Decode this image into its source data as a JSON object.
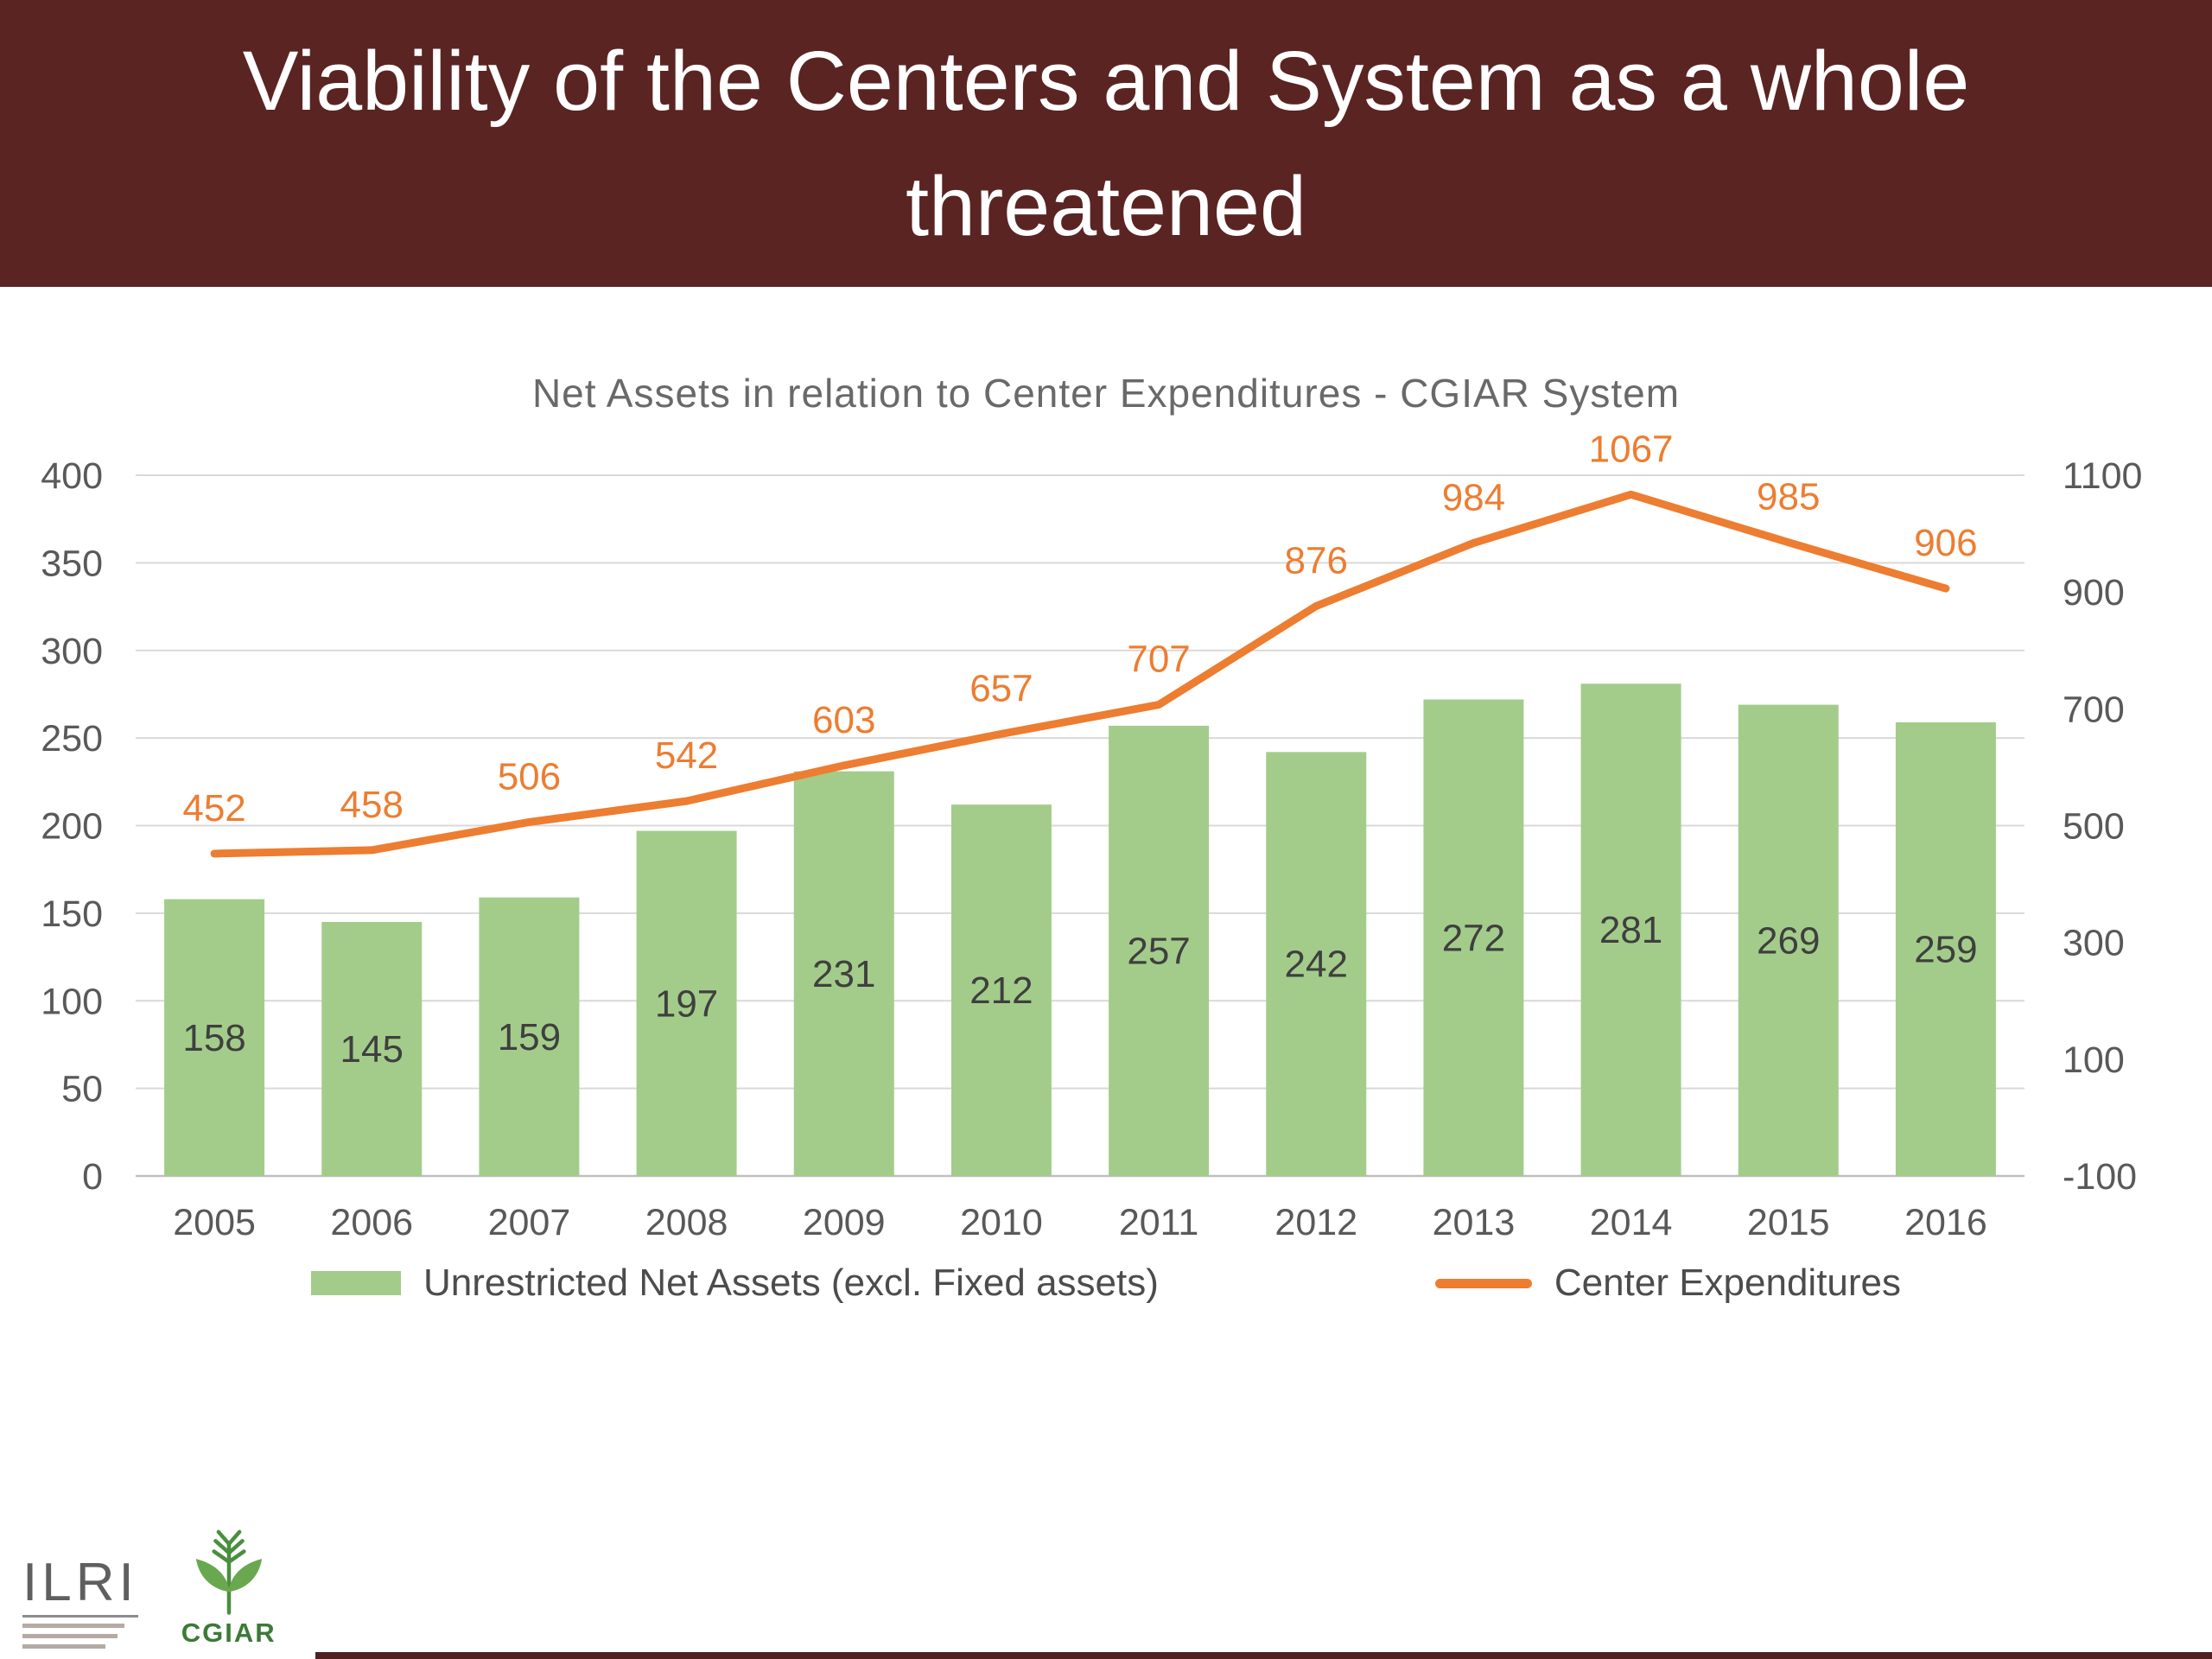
{
  "slide": {
    "title_line1": "Viability of the Centers and System as a whole",
    "title_line2": "threatened",
    "header_bg": "#5a2422"
  },
  "chart_data": {
    "type": "bar",
    "title": "Net Assets in relation to Center Expenditures - CGIAR System",
    "categories": [
      "2005",
      "2006",
      "2007",
      "2008",
      "2009",
      "2010",
      "2011",
      "2012",
      "2013",
      "2014",
      "2015",
      "2016"
    ],
    "series": [
      {
        "name": "Unrestricted Net Assets (excl. Fixed assets)",
        "type": "bar",
        "axis": "left",
        "color": "#a3cc8a",
        "values": [
          158,
          145,
          159,
          197,
          231,
          212,
          257,
          242,
          272,
          281,
          269,
          259
        ]
      },
      {
        "name": "Center Expenditures",
        "type": "line",
        "axis": "right",
        "color": "#ed7d31",
        "values": [
          452,
          458,
          506,
          542,
          603,
          657,
          707,
          876,
          984,
          1067,
          985,
          906
        ]
      }
    ],
    "left_axis": {
      "min": 0,
      "max": 400,
      "ticks": [
        0,
        50,
        100,
        150,
        200,
        250,
        300,
        350,
        400
      ]
    },
    "right_axis": {
      "min": -100,
      "max": 1100,
      "ticks": [
        -100,
        100,
        300,
        500,
        700,
        900,
        1100
      ]
    },
    "grid": true,
    "legend_position": "bottom",
    "grid_color": "#d9d9d9",
    "axis_line_color": "#bfbfbf"
  },
  "logos": {
    "ilri": "ILRI",
    "cgiar": "CGIAR"
  }
}
